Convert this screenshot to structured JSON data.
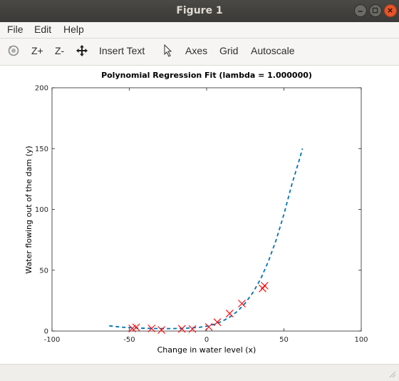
{
  "window": {
    "title": "Figure 1"
  },
  "menu": {
    "file": "File",
    "edit": "Edit",
    "help": "Help"
  },
  "toolbar": {
    "zoom_in": "Z+",
    "zoom_out": "Z-",
    "insert_text": "Insert Text",
    "axes": "Axes",
    "grid": "Grid",
    "autoscale": "Autoscale"
  },
  "chart_data": {
    "type": "scatter",
    "title": "Polynomial Regression Fit (lambda = 1.000000)",
    "xlabel": "Change in water level (x)",
    "ylabel": "Water flowing out of the dam (y)",
    "xlim": [
      -100,
      100
    ],
    "ylim": [
      0,
      200
    ],
    "xticks": [
      "-100",
      "-50",
      "0",
      "50",
      "100"
    ],
    "yticks": [
      "0",
      "50",
      "100",
      "150",
      "200"
    ],
    "grid": false,
    "series": [
      {
        "kind": "markers",
        "marker": "x",
        "color": "#ff0000",
        "x": [
          -48.1,
          -45.6,
          -35.6,
          -29.2,
          -16.0,
          -9.2,
          1.4,
          6.9,
          14.9,
          22.8,
          36.2,
          37.5
        ],
        "y": [
          2.1,
          3.1,
          2.1,
          0.9,
          1.8,
          1.7,
          3.4,
          7.3,
          14.4,
          22.6,
          35.0,
          37.3
        ]
      },
      {
        "kind": "fit-line",
        "style": "dashed",
        "color": "#0072bd",
        "x": [
          -63,
          -55,
          -45,
          -35,
          -25,
          -15,
          -5,
          0,
          5,
          10,
          15,
          20,
          25,
          30,
          35,
          40,
          45,
          50,
          55,
          60,
          62
        ],
        "y": [
          4.3,
          3.2,
          2.5,
          2.1,
          2.0,
          2.2,
          3.0,
          4.0,
          5.6,
          8.0,
          11.5,
          16.3,
          23.0,
          31.8,
          43.0,
          57.5,
          75.0,
          96.0,
          120.0,
          141.0,
          150.0
        ]
      }
    ]
  }
}
